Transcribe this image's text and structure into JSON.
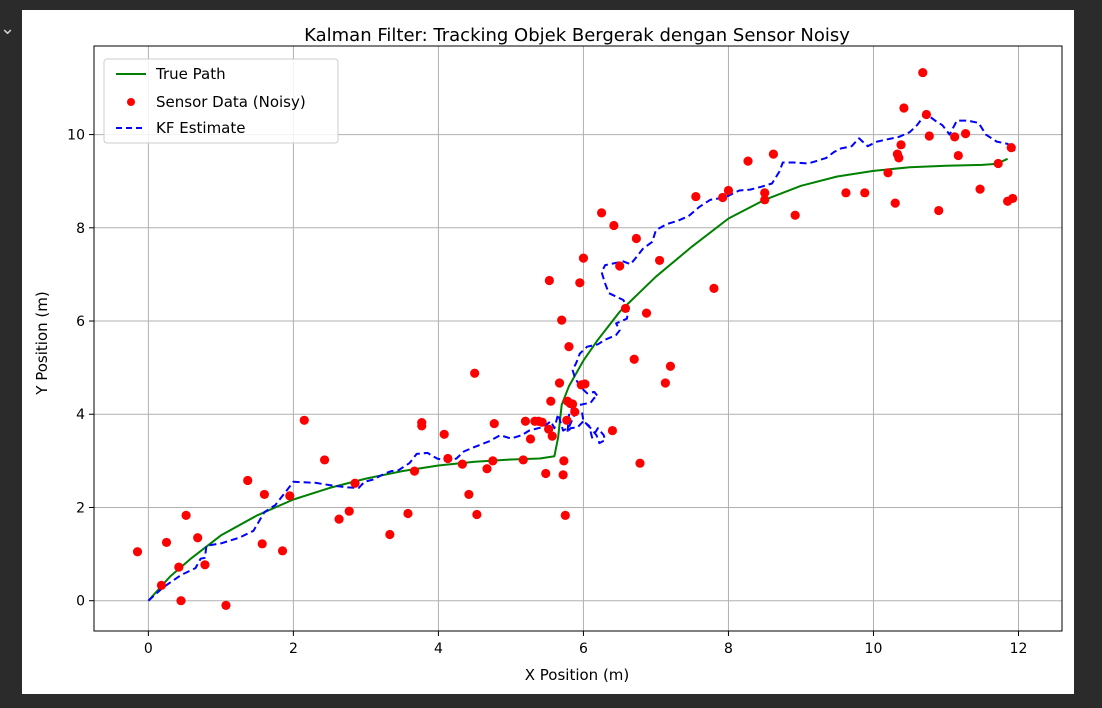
{
  "chart_data": {
    "type": "scatter",
    "title": "Kalman Filter: Tracking Objek Bergerak dengan Sensor Noisy",
    "xlabel": "X Position (m)",
    "ylabel": "Y Position (m)",
    "xlim": [
      -0.75,
      12.6
    ],
    "ylim": [
      -0.65,
      11.9
    ],
    "xticks": [
      0,
      2,
      4,
      6,
      8,
      10,
      12
    ],
    "yticks": [
      0,
      2,
      4,
      6,
      8,
      10
    ],
    "grid": true,
    "legend_position": "upper-left",
    "colors": {
      "true_path": "#008000",
      "sensor": "#ff0000",
      "kf": "#0000ff"
    },
    "series": [
      {
        "name": "True Path",
        "style": "solid-line",
        "points": [
          [
            0,
            0
          ],
          [
            0.3,
            0.52
          ],
          [
            0.6,
            0.92
          ],
          [
            1.0,
            1.4
          ],
          [
            1.5,
            1.83
          ],
          [
            2.0,
            2.17
          ],
          [
            2.5,
            2.42
          ],
          [
            3.0,
            2.62
          ],
          [
            3.5,
            2.78
          ],
          [
            4.0,
            2.9
          ],
          [
            4.5,
            2.98
          ],
          [
            5.0,
            3.03
          ],
          [
            5.4,
            3.05
          ],
          [
            5.6,
            3.1
          ],
          [
            5.65,
            3.5
          ],
          [
            5.7,
            4.2
          ],
          [
            5.8,
            4.6
          ],
          [
            6.0,
            5.15
          ],
          [
            6.2,
            5.6
          ],
          [
            6.5,
            6.2
          ],
          [
            7.0,
            6.95
          ],
          [
            7.5,
            7.6
          ],
          [
            8.0,
            8.2
          ],
          [
            8.5,
            8.6
          ],
          [
            9.0,
            8.9
          ],
          [
            9.5,
            9.1
          ],
          [
            10.0,
            9.22
          ],
          [
            10.5,
            9.3
          ],
          [
            11.0,
            9.33
          ],
          [
            11.5,
            9.35
          ],
          [
            11.7,
            9.37
          ],
          [
            11.85,
            9.48
          ]
        ]
      },
      {
        "name": "Sensor Data (Noisy)",
        "style": "markers",
        "points": [
          [
            -0.15,
            1.05
          ],
          [
            0.18,
            0.33
          ],
          [
            0.25,
            1.25
          ],
          [
            0.42,
            0.72
          ],
          [
            0.45,
            0.0
          ],
          [
            0.52,
            1.83
          ],
          [
            0.68,
            1.35
          ],
          [
            0.78,
            0.77
          ],
          [
            1.07,
            -0.1
          ],
          [
            1.37,
            2.58
          ],
          [
            1.57,
            1.22
          ],
          [
            1.6,
            2.28
          ],
          [
            1.85,
            1.07
          ],
          [
            1.95,
            2.25
          ],
          [
            2.15,
            3.87
          ],
          [
            2.43,
            3.02
          ],
          [
            2.63,
            1.75
          ],
          [
            2.77,
            1.92
          ],
          [
            2.85,
            2.52
          ],
          [
            3.33,
            1.42
          ],
          [
            3.58,
            1.87
          ],
          [
            3.67,
            2.78
          ],
          [
            3.77,
            3.82
          ],
          [
            3.77,
            3.75
          ],
          [
            4.08,
            3.57
          ],
          [
            4.13,
            3.05
          ],
          [
            4.33,
            2.93
          ],
          [
            4.42,
            2.28
          ],
          [
            4.5,
            4.88
          ],
          [
            4.53,
            1.85
          ],
          [
            4.67,
            2.83
          ],
          [
            4.75,
            3.0
          ],
          [
            4.77,
            3.8
          ],
          [
            5.17,
            3.02
          ],
          [
            5.2,
            3.85
          ],
          [
            5.27,
            3.47
          ],
          [
            5.33,
            3.85
          ],
          [
            5.38,
            3.85
          ],
          [
            5.43,
            3.83
          ],
          [
            5.48,
            2.73
          ],
          [
            5.52,
            3.68
          ],
          [
            5.53,
            6.87
          ],
          [
            5.55,
            4.28
          ],
          [
            5.57,
            3.53
          ],
          [
            5.67,
            4.67
          ],
          [
            5.7,
            6.02
          ],
          [
            5.72,
            2.7
          ],
          [
            5.73,
            3.0
          ],
          [
            5.75,
            1.83
          ],
          [
            5.77,
            3.87
          ],
          [
            5.78,
            4.28
          ],
          [
            5.8,
            5.45
          ],
          [
            5.82,
            4.23
          ],
          [
            5.85,
            4.22
          ],
          [
            5.88,
            4.05
          ],
          [
            5.95,
            6.82
          ],
          [
            5.97,
            4.63
          ],
          [
            6.0,
            7.35
          ],
          [
            6.02,
            4.65
          ],
          [
            6.25,
            8.32
          ],
          [
            6.4,
            3.65
          ],
          [
            6.42,
            8.05
          ],
          [
            6.5,
            7.18
          ],
          [
            6.58,
            6.27
          ],
          [
            6.7,
            5.18
          ],
          [
            6.73,
            7.77
          ],
          [
            6.78,
            2.95
          ],
          [
            6.87,
            6.17
          ],
          [
            7.05,
            7.3
          ],
          [
            7.13,
            4.67
          ],
          [
            7.2,
            5.03
          ],
          [
            7.55,
            8.67
          ],
          [
            7.8,
            6.7
          ],
          [
            7.92,
            8.65
          ],
          [
            8.0,
            8.8
          ],
          [
            8.27,
            9.43
          ],
          [
            8.5,
            8.75
          ],
          [
            8.5,
            8.6
          ],
          [
            8.62,
            9.58
          ],
          [
            8.92,
            8.27
          ],
          [
            9.62,
            8.75
          ],
          [
            9.88,
            8.75
          ],
          [
            10.2,
            9.18
          ],
          [
            10.3,
            8.53
          ],
          [
            10.33,
            9.58
          ],
          [
            10.35,
            9.5
          ],
          [
            10.38,
            9.78
          ],
          [
            10.42,
            10.57
          ],
          [
            10.68,
            11.33
          ],
          [
            10.73,
            10.43
          ],
          [
            10.77,
            9.97
          ],
          [
            10.9,
            8.37
          ],
          [
            11.12,
            9.95
          ],
          [
            11.17,
            9.55
          ],
          [
            11.27,
            10.02
          ],
          [
            11.47,
            8.83
          ],
          [
            11.72,
            9.38
          ],
          [
            11.85,
            8.57
          ],
          [
            11.9,
            9.72
          ],
          [
            11.92,
            8.63
          ]
        ]
      },
      {
        "name": "KF Estimate",
        "style": "dashed-line",
        "points": [
          [
            0,
            0
          ],
          [
            0.2,
            0.28
          ],
          [
            0.45,
            0.55
          ],
          [
            0.65,
            0.7
          ],
          [
            0.72,
            0.9
          ],
          [
            0.78,
            0.92
          ],
          [
            0.8,
            1.18
          ],
          [
            1.0,
            1.23
          ],
          [
            1.25,
            1.35
          ],
          [
            1.45,
            1.5
          ],
          [
            1.6,
            1.9
          ],
          [
            1.75,
            2.05
          ],
          [
            2.0,
            2.55
          ],
          [
            2.3,
            2.53
          ],
          [
            2.5,
            2.48
          ],
          [
            2.75,
            2.43
          ],
          [
            2.9,
            2.42
          ],
          [
            2.98,
            2.55
          ],
          [
            3.1,
            2.6
          ],
          [
            3.25,
            2.72
          ],
          [
            3.35,
            2.78
          ],
          [
            3.45,
            2.8
          ],
          [
            3.6,
            2.95
          ],
          [
            3.7,
            3.15
          ],
          [
            3.85,
            3.17
          ],
          [
            3.98,
            3.05
          ],
          [
            4.12,
            3.0
          ],
          [
            4.25,
            3.05
          ],
          [
            4.35,
            3.2
          ],
          [
            4.5,
            3.3
          ],
          [
            4.7,
            3.42
          ],
          [
            4.85,
            3.55
          ],
          [
            5.0,
            3.48
          ],
          [
            5.15,
            3.55
          ],
          [
            5.25,
            3.65
          ],
          [
            5.45,
            3.73
          ],
          [
            5.55,
            3.85
          ],
          [
            5.6,
            3.7
          ],
          [
            5.65,
            4.0
          ],
          [
            5.72,
            3.65
          ],
          [
            5.8,
            3.72
          ],
          [
            5.88,
            4.0
          ],
          [
            5.98,
            4.05
          ],
          [
            6.0,
            3.85
          ],
          [
            6.08,
            3.75
          ],
          [
            6.12,
            3.5
          ],
          [
            6.2,
            3.7
          ],
          [
            6.28,
            3.55
          ],
          [
            6.3,
            3.45
          ],
          [
            6.22,
            3.38
          ],
          [
            6.18,
            3.55
          ],
          [
            6.1,
            3.7
          ],
          [
            6.0,
            3.85
          ],
          [
            5.92,
            3.72
          ],
          [
            5.82,
            3.7
          ],
          [
            5.78,
            3.6
          ],
          [
            5.8,
            3.98
          ],
          [
            5.85,
            4.15
          ],
          [
            5.95,
            4.2
          ],
          [
            6.1,
            4.25
          ],
          [
            6.15,
            4.35
          ],
          [
            6.2,
            4.38
          ],
          [
            6.15,
            4.48
          ],
          [
            6.05,
            4.45
          ],
          [
            5.95,
            4.6
          ],
          [
            5.88,
            4.8
          ],
          [
            5.85,
            4.95
          ],
          [
            5.9,
            5.1
          ],
          [
            5.95,
            5.3
          ],
          [
            6.05,
            5.45
          ],
          [
            6.2,
            5.5
          ],
          [
            6.3,
            5.6
          ],
          [
            6.45,
            5.7
          ],
          [
            6.5,
            5.8
          ],
          [
            6.45,
            5.95
          ],
          [
            6.6,
            6.05
          ],
          [
            6.62,
            6.25
          ],
          [
            6.55,
            6.45
          ],
          [
            6.35,
            6.6
          ],
          [
            6.3,
            6.8
          ],
          [
            6.25,
            7.05
          ],
          [
            6.3,
            7.2
          ],
          [
            6.55,
            7.28
          ],
          [
            6.65,
            7.22
          ],
          [
            6.72,
            7.35
          ],
          [
            6.82,
            7.55
          ],
          [
            6.95,
            7.7
          ],
          [
            7.0,
            7.95
          ],
          [
            7.15,
            8.08
          ],
          [
            7.3,
            8.15
          ],
          [
            7.45,
            8.25
          ],
          [
            7.6,
            8.45
          ],
          [
            7.75,
            8.6
          ],
          [
            7.95,
            8.65
          ],
          [
            8.15,
            8.8
          ],
          [
            8.3,
            8.82
          ],
          [
            8.45,
            8.88
          ],
          [
            8.6,
            8.95
          ],
          [
            8.7,
            9.2
          ],
          [
            8.75,
            9.4
          ],
          [
            8.9,
            9.4
          ],
          [
            9.1,
            9.38
          ],
          [
            9.25,
            9.45
          ],
          [
            9.35,
            9.5
          ],
          [
            9.45,
            9.62
          ],
          [
            9.55,
            9.7
          ],
          [
            9.7,
            9.75
          ],
          [
            9.8,
            9.92
          ],
          [
            9.92,
            9.75
          ],
          [
            10.05,
            9.85
          ],
          [
            10.2,
            9.9
          ],
          [
            10.35,
            9.95
          ],
          [
            10.5,
            10.05
          ],
          [
            10.6,
            10.2
          ],
          [
            10.72,
            10.45
          ],
          [
            10.85,
            10.3
          ],
          [
            10.95,
            10.2
          ],
          [
            11.05,
            10.0
          ],
          [
            11.15,
            10.3
          ],
          [
            11.3,
            10.3
          ],
          [
            11.45,
            10.25
          ],
          [
            11.55,
            10.0
          ],
          [
            11.7,
            9.85
          ],
          [
            11.85,
            9.8
          ],
          [
            11.95,
            9.65
          ]
        ]
      }
    ]
  }
}
